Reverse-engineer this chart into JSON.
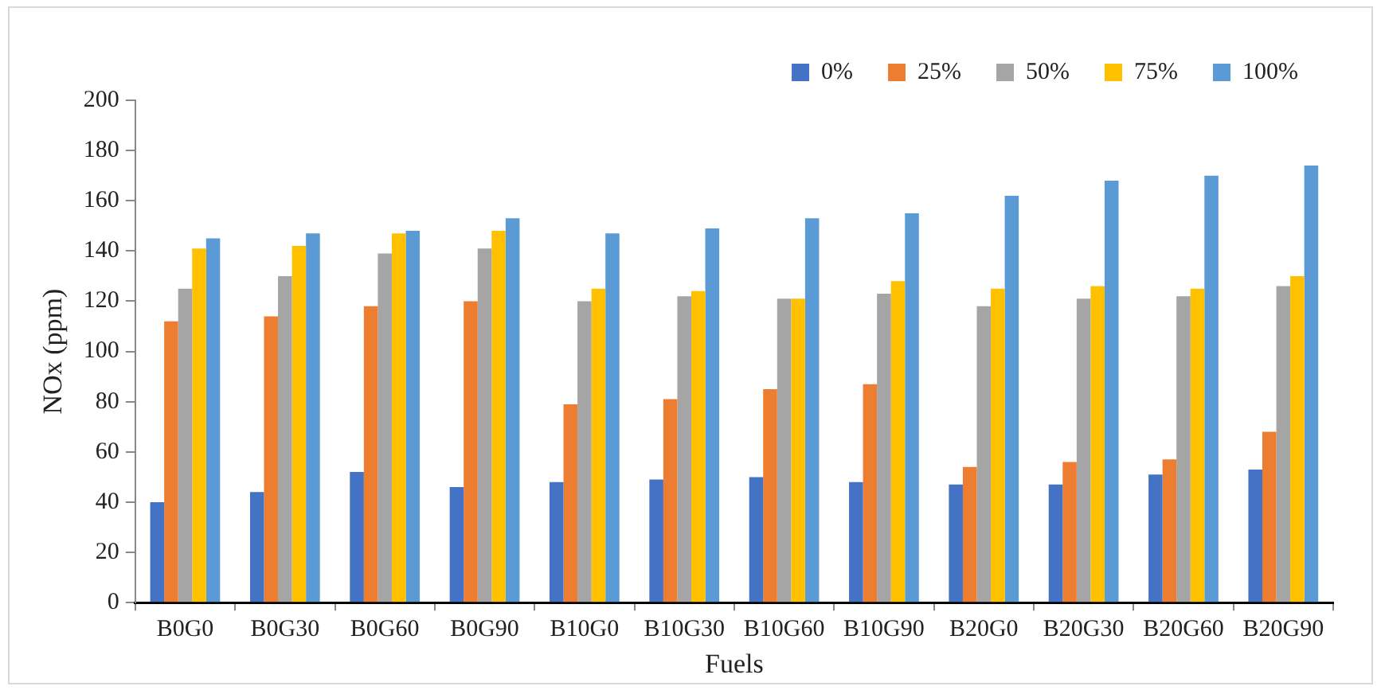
{
  "chart_data": {
    "type": "bar",
    "xlabel": "Fuels",
    "ylabel": "NOx (ppm)",
    "categories": [
      "B0G0",
      "B0G30",
      "B0G60",
      "B0G90",
      "B10G0",
      "B10G30",
      "B10G60",
      "B10G90",
      "B20G0",
      "B20G30",
      "B20G60",
      "B20G90"
    ],
    "series": [
      {
        "name": "0%",
        "color": "#4472c4",
        "values": [
          40,
          44,
          52,
          46,
          48,
          49,
          50,
          48,
          47,
          47,
          51,
          53
        ]
      },
      {
        "name": "25%",
        "color": "#ed7d31",
        "values": [
          112,
          114,
          118,
          120,
          79,
          81,
          85,
          87,
          54,
          56,
          57,
          68
        ]
      },
      {
        "name": "50%",
        "color": "#a5a5a5",
        "values": [
          125,
          130,
          139,
          141,
          120,
          122,
          121,
          123,
          118,
          121,
          122,
          126
        ]
      },
      {
        "name": "75%",
        "color": "#ffc000",
        "values": [
          141,
          142,
          147,
          148,
          125,
          124,
          121,
          128,
          125,
          126,
          125,
          130
        ]
      },
      {
        "name": "100%",
        "color": "#5b9bd5",
        "values": [
          145,
          147,
          148,
          153,
          147,
          149,
          153,
          155,
          162,
          168,
          170,
          174
        ]
      }
    ],
    "ylim": [
      0,
      200
    ],
    "yticks": [
      0,
      20,
      40,
      60,
      80,
      100,
      120,
      140,
      160,
      180,
      200
    ],
    "grid": false,
    "legend": "top right"
  }
}
